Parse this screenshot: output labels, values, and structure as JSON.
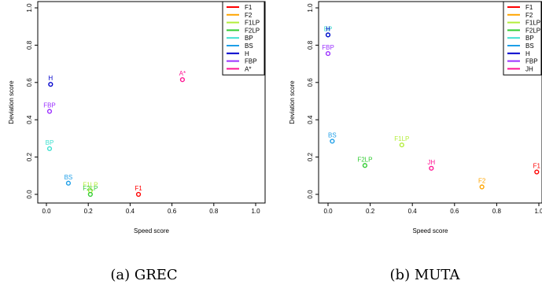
{
  "chart_data": [
    {
      "type": "scatter",
      "caption": "(a) GREC",
      "xlabel": "Speed score",
      "ylabel": "Deviation score",
      "xlim": [
        0,
        1
      ],
      "ylim": [
        0,
        1
      ],
      "xticks": [
        "0.0",
        "0.2",
        "0.4",
        "0.6",
        "0.8",
        "1.0"
      ],
      "yticks": [
        "0.0",
        "0.2",
        "0.4",
        "0.6",
        "0.8",
        "1.0"
      ],
      "grid": false,
      "legend_position": "top-right",
      "legend": [
        {
          "name": "F1",
          "color": "#ff0000"
        },
        {
          "name": "F2",
          "color": "#ffa500"
        },
        {
          "name": "F1LP",
          "color": "#b3ee3a"
        },
        {
          "name": "F2LP",
          "color": "#32cd32"
        },
        {
          "name": "BP",
          "color": "#40e0d0"
        },
        {
          "name": "BS",
          "color": "#1e9fe8"
        },
        {
          "name": "H",
          "color": "#0000cd"
        },
        {
          "name": "FBP",
          "color": "#9b30ff"
        },
        {
          "name": "A*",
          "color": "#ff1493"
        }
      ],
      "points": [
        {
          "label": "F1",
          "x": 0.44,
          "y": 0.0,
          "color": "#ff0000"
        },
        {
          "label": "F1LP",
          "x": 0.21,
          "y": 0.02,
          "color": "#b3ee3a"
        },
        {
          "label": "F2LP",
          "x": 0.21,
          "y": 0.0,
          "color": "#32cd32"
        },
        {
          "label": "BP",
          "x": 0.015,
          "y": 0.245,
          "color": "#40e0d0"
        },
        {
          "label": "BS",
          "x": 0.105,
          "y": 0.06,
          "color": "#1e9fe8"
        },
        {
          "label": "H",
          "x": 0.02,
          "y": 0.59,
          "color": "#0000cd"
        },
        {
          "label": "FBP",
          "x": 0.015,
          "y": 0.445,
          "color": "#9b30ff"
        },
        {
          "label": "A*",
          "x": 0.65,
          "y": 0.615,
          "color": "#ff1493"
        }
      ]
    },
    {
      "type": "scatter",
      "caption": "(b) MUTA",
      "xlabel": "Speed score",
      "ylabel": "Deviation score",
      "xlim": [
        0,
        1
      ],
      "ylim": [
        0,
        1
      ],
      "xticks": [
        "0.0",
        "0.2",
        "0.4",
        "0.6",
        "0.8",
        "1.0"
      ],
      "yticks": [
        "0.0",
        "0.2",
        "0.4",
        "0.6",
        "0.8",
        "1.0"
      ],
      "grid": false,
      "legend_position": "top-right",
      "legend": [
        {
          "name": "F1",
          "color": "#ff0000"
        },
        {
          "name": "F2",
          "color": "#ffa500"
        },
        {
          "name": "F1LP",
          "color": "#b3ee3a"
        },
        {
          "name": "F2LP",
          "color": "#32cd32"
        },
        {
          "name": "BP",
          "color": "#40e0d0"
        },
        {
          "name": "BS",
          "color": "#1e9fe8"
        },
        {
          "name": "H",
          "color": "#0000cd"
        },
        {
          "name": "FBP",
          "color": "#9b30ff"
        },
        {
          "name": "JH",
          "color": "#ff1493"
        }
      ],
      "points": [
        {
          "label": "F1",
          "x": 0.99,
          "y": 0.12,
          "color": "#ff0000"
        },
        {
          "label": "F2",
          "x": 0.73,
          "y": 0.04,
          "color": "#ffa500"
        },
        {
          "label": "F1LP",
          "x": 0.35,
          "y": 0.265,
          "color": "#b3ee3a"
        },
        {
          "label": "F2LP",
          "x": 0.175,
          "y": 0.155,
          "color": "#32cd32"
        },
        {
          "label": "BP",
          "x": 0.0,
          "y": 0.855,
          "color": "#40e0d0"
        },
        {
          "label": "BS",
          "x": 0.02,
          "y": 0.285,
          "color": "#1e9fe8"
        },
        {
          "label": "H",
          "x": 0.0,
          "y": 0.855,
          "color": "#0000cd"
        },
        {
          "label": "FBP",
          "x": 0.0,
          "y": 0.755,
          "color": "#9b30ff"
        },
        {
          "label": "JH",
          "x": 0.49,
          "y": 0.14,
          "color": "#ff1493"
        }
      ]
    }
  ]
}
